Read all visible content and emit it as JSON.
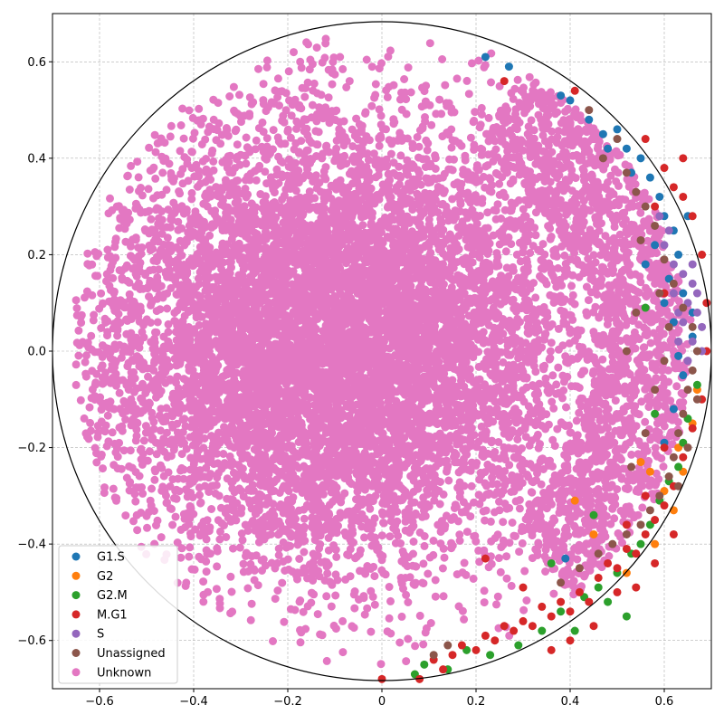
{
  "chart_data": {
    "type": "scatter",
    "title": "",
    "xlabel": "",
    "ylabel": "",
    "xlim": [
      -0.7,
      0.7
    ],
    "ylim": [
      -0.7,
      0.7
    ],
    "xticks": [
      -0.6,
      -0.4,
      -0.2,
      0.0,
      0.2,
      0.4,
      0.6
    ],
    "yticks": [
      -0.6,
      -0.4,
      -0.2,
      0.0,
      0.2,
      0.4,
      0.6
    ],
    "xtick_labels": [
      "−0.6",
      "−0.4",
      "−0.2",
      "0",
      "0.2",
      "0.4",
      "0.6"
    ],
    "ytick_labels": [
      "−0.6",
      "−0.4",
      "−0.2",
      "0.0",
      "0.2",
      "0.4",
      "0.6"
    ],
    "grid": true,
    "boundary_circle_radius": 0.7,
    "legend": "lower-left",
    "series": [
      {
        "name": "G1.S",
        "color": "#1f77b4",
        "points": [
          [
            0.22,
            0.61
          ],
          [
            0.27,
            0.59
          ],
          [
            0.38,
            0.53
          ],
          [
            0.4,
            0.52
          ],
          [
            0.44,
            0.48
          ],
          [
            0.47,
            0.45
          ],
          [
            0.5,
            0.46
          ],
          [
            0.52,
            0.42
          ],
          [
            0.55,
            0.4
          ],
          [
            0.57,
            0.36
          ],
          [
            0.53,
            0.37
          ],
          [
            0.59,
            0.32
          ],
          [
            0.6,
            0.28
          ],
          [
            0.62,
            0.25
          ],
          [
            0.58,
            0.22
          ],
          [
            0.63,
            0.2
          ],
          [
            0.61,
            0.15
          ],
          [
            0.64,
            0.12
          ],
          [
            0.6,
            0.1
          ],
          [
            0.62,
            0.06
          ],
          [
            0.66,
            0.03
          ],
          [
            0.63,
            -0.01
          ],
          [
            0.64,
            -0.05
          ],
          [
            0.62,
            -0.12
          ],
          [
            0.6,
            -0.19
          ],
          [
            0.39,
            -0.43
          ],
          [
            0.56,
            0.18
          ],
          [
            0.65,
            0.28
          ],
          [
            0.48,
            0.42
          ],
          [
            0.66,
            0.08
          ]
        ]
      },
      {
        "name": "G2",
        "color": "#ff7f0e",
        "points": [
          [
            0.41,
            -0.31
          ],
          [
            0.45,
            -0.38
          ],
          [
            0.55,
            -0.23
          ],
          [
            0.57,
            -0.25
          ],
          [
            0.6,
            -0.29
          ],
          [
            0.62,
            -0.33
          ],
          [
            0.64,
            -0.25
          ],
          [
            0.66,
            -0.15
          ],
          [
            0.67,
            -0.08
          ],
          [
            0.58,
            -0.4
          ],
          [
            0.52,
            -0.46
          ],
          [
            0.63,
            -0.2
          ]
        ]
      },
      {
        "name": "G2.M",
        "color": "#2ca02c",
        "points": [
          [
            0.07,
            -0.67
          ],
          [
            0.09,
            -0.65
          ],
          [
            0.18,
            -0.62
          ],
          [
            0.23,
            -0.63
          ],
          [
            0.29,
            -0.61
          ],
          [
            0.34,
            -0.58
          ],
          [
            0.38,
            -0.54
          ],
          [
            0.43,
            -0.51
          ],
          [
            0.46,
            -0.49
          ],
          [
            0.5,
            -0.46
          ],
          [
            0.53,
            -0.42
          ],
          [
            0.55,
            -0.4
          ],
          [
            0.57,
            -0.36
          ],
          [
            0.59,
            -0.31
          ],
          [
            0.61,
            -0.27
          ],
          [
            0.63,
            -0.24
          ],
          [
            0.64,
            -0.19
          ],
          [
            0.65,
            -0.14
          ],
          [
            0.67,
            -0.07
          ],
          [
            0.45,
            -0.34
          ],
          [
            0.58,
            -0.13
          ],
          [
            0.52,
            -0.55
          ],
          [
            0.41,
            -0.58
          ],
          [
            0.14,
            -0.66
          ],
          [
            0.48,
            -0.52
          ],
          [
            0.36,
            -0.44
          ],
          [
            0.56,
            0.09
          ]
        ]
      },
      {
        "name": "M.G1",
        "color": "#d62728",
        "points": [
          [
            0.0,
            -0.68
          ],
          [
            0.08,
            -0.68
          ],
          [
            0.11,
            -0.64
          ],
          [
            0.13,
            -0.66
          ],
          [
            0.15,
            -0.63
          ],
          [
            0.17,
            -0.61
          ],
          [
            0.2,
            -0.62
          ],
          [
            0.22,
            -0.59
          ],
          [
            0.24,
            -0.6
          ],
          [
            0.26,
            -0.57
          ],
          [
            0.28,
            -0.58
          ],
          [
            0.3,
            -0.56
          ],
          [
            0.32,
            -0.57
          ],
          [
            0.34,
            -0.53
          ],
          [
            0.36,
            -0.55
          ],
          [
            0.38,
            -0.52
          ],
          [
            0.4,
            -0.54
          ],
          [
            0.42,
            -0.5
          ],
          [
            0.44,
            -0.52
          ],
          [
            0.46,
            -0.47
          ],
          [
            0.48,
            -0.44
          ],
          [
            0.5,
            -0.45
          ],
          [
            0.52,
            -0.41
          ],
          [
            0.54,
            -0.42
          ],
          [
            0.56,
            -0.38
          ],
          [
            0.58,
            -0.35
          ],
          [
            0.6,
            -0.32
          ],
          [
            0.62,
            -0.28
          ],
          [
            0.64,
            -0.22
          ],
          [
            0.66,
            -0.16
          ],
          [
            0.68,
            -0.1
          ],
          [
            0.69,
            0.0
          ],
          [
            0.69,
            0.1
          ],
          [
            0.68,
            0.2
          ],
          [
            0.66,
            0.28
          ],
          [
            0.64,
            0.32
          ],
          [
            0.62,
            0.34
          ],
          [
            0.6,
            0.38
          ],
          [
            0.56,
            0.44
          ],
          [
            0.41,
            0.54
          ],
          [
            0.26,
            0.56
          ],
          [
            0.22,
            -0.43
          ],
          [
            0.3,
            -0.49
          ],
          [
            0.36,
            -0.62
          ],
          [
            0.4,
            -0.6
          ],
          [
            0.45,
            -0.57
          ],
          [
            0.5,
            -0.5
          ],
          [
            0.54,
            -0.49
          ],
          [
            0.58,
            -0.44
          ],
          [
            0.62,
            -0.38
          ],
          [
            0.6,
            -0.2
          ],
          [
            0.56,
            -0.3
          ],
          [
            0.52,
            -0.36
          ],
          [
            0.58,
            0.3
          ],
          [
            0.6,
            0.12
          ],
          [
            0.64,
            0.4
          ]
        ]
      },
      {
        "name": "S",
        "color": "#9467bd",
        "points": [
          [
            0.6,
            0.22
          ],
          [
            0.62,
            0.18
          ],
          [
            0.64,
            0.16
          ],
          [
            0.66,
            0.14
          ],
          [
            0.65,
            0.1
          ],
          [
            0.67,
            0.08
          ],
          [
            0.68,
            0.05
          ],
          [
            0.66,
            0.02
          ],
          [
            0.64,
            0.06
          ],
          [
            0.62,
            0.12
          ],
          [
            0.63,
            0.08
          ],
          [
            0.67,
            0.12
          ],
          [
            0.61,
            0.25
          ],
          [
            0.59,
            0.28
          ],
          [
            0.66,
            0.18
          ],
          [
            0.68,
            0.0
          ],
          [
            0.63,
            0.02
          ],
          [
            0.65,
            -0.02
          ]
        ]
      },
      {
        "name": "Unassigned",
        "color": "#8c564b",
        "points": [
          [
            0.11,
            -0.63
          ],
          [
            0.14,
            -0.61
          ],
          [
            0.46,
            -0.42
          ],
          [
            0.49,
            -0.4
          ],
          [
            0.52,
            -0.38
          ],
          [
            0.55,
            -0.36
          ],
          [
            0.57,
            -0.33
          ],
          [
            0.59,
            -0.3
          ],
          [
            0.61,
            -0.26
          ],
          [
            0.62,
            -0.22
          ],
          [
            0.63,
            -0.17
          ],
          [
            0.64,
            -0.13
          ],
          [
            0.65,
            -0.08
          ],
          [
            0.66,
            -0.04
          ],
          [
            0.67,
            0.0
          ],
          [
            0.66,
            0.05
          ],
          [
            0.64,
            0.09
          ],
          [
            0.62,
            0.14
          ],
          [
            0.6,
            0.19
          ],
          [
            0.58,
            0.26
          ],
          [
            0.56,
            0.3
          ],
          [
            0.54,
            0.33
          ],
          [
            0.52,
            0.37
          ],
          [
            0.47,
            0.4
          ],
          [
            0.42,
            -0.45
          ],
          [
            0.38,
            -0.48
          ],
          [
            0.53,
            -0.24
          ],
          [
            0.56,
            -0.17
          ],
          [
            0.58,
            -0.08
          ],
          [
            0.6,
            -0.02
          ],
          [
            0.61,
            0.05
          ],
          [
            0.59,
            0.12
          ],
          [
            0.55,
            0.23
          ],
          [
            0.5,
            0.44
          ],
          [
            0.44,
            0.5
          ],
          [
            0.65,
            -0.2
          ],
          [
            0.63,
            -0.28
          ],
          [
            0.67,
            -0.1
          ],
          [
            0.54,
            0.08
          ],
          [
            0.52,
            0.0
          ]
        ]
      },
      {
        "name": "Unknown",
        "color": "#e377c2",
        "points": []
      }
    ]
  }
}
